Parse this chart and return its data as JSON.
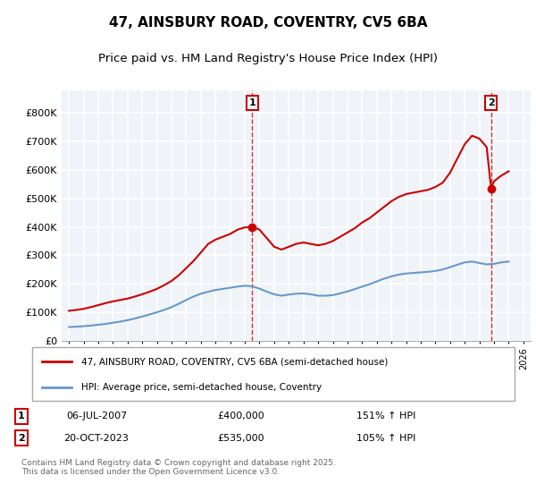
{
  "title1": "47, AINSBURY ROAD, COVENTRY, CV5 6BA",
  "title2": "Price paid vs. HM Land Registry's House Price Index (HPI)",
  "legend_line1": "47, AINSBURY ROAD, COVENTRY, CV5 6BA (semi-detached house)",
  "legend_line2": "HPI: Average price, semi-detached house, Coventry",
  "footnote": "Contains HM Land Registry data © Crown copyright and database right 2025.\nThis data is licensed under the Open Government Licence v3.0.",
  "marker1_date": "06-JUL-2007",
  "marker1_price": "£400,000",
  "marker1_hpi": "151% ↑ HPI",
  "marker1_x": 2007.51,
  "marker1_y": 400000,
  "marker2_date": "20-OCT-2023",
  "marker2_price": "£535,000",
  "marker2_hpi": "105% ↑ HPI",
  "marker2_x": 2023.8,
  "marker2_y": 535000,
  "red_color": "#cc0000",
  "blue_color": "#6699cc",
  "dashed_color": "#cc0000",
  "background_color": "#f0f4f8",
  "plot_bg": "#f0f4f8",
  "grid_color": "#ffffff",
  "ylim": [
    0,
    880000
  ],
  "xlim": [
    1994.5,
    2026.5
  ],
  "red_x": [
    1995.0,
    1995.5,
    1996.0,
    1996.5,
    1997.0,
    1997.5,
    1998.0,
    1998.5,
    1999.0,
    1999.5,
    2000.0,
    2000.5,
    2001.0,
    2001.5,
    2002.0,
    2002.5,
    2003.0,
    2003.5,
    2004.0,
    2004.5,
    2005.0,
    2005.5,
    2006.0,
    2006.5,
    2007.0,
    2007.51,
    2008.0,
    2008.5,
    2009.0,
    2009.5,
    2010.0,
    2010.5,
    2011.0,
    2011.5,
    2012.0,
    2012.5,
    2013.0,
    2013.5,
    2014.0,
    2014.5,
    2015.0,
    2015.5,
    2016.0,
    2016.5,
    2017.0,
    2017.5,
    2018.0,
    2018.5,
    2019.0,
    2019.5,
    2020.0,
    2020.5,
    2021.0,
    2021.5,
    2022.0,
    2022.5,
    2023.0,
    2023.5,
    2023.8,
    2024.0,
    2024.5,
    2025.0
  ],
  "red_y": [
    105000,
    108000,
    112000,
    118000,
    125000,
    132000,
    138000,
    143000,
    148000,
    155000,
    163000,
    172000,
    182000,
    195000,
    210000,
    230000,
    255000,
    280000,
    310000,
    340000,
    355000,
    365000,
    375000,
    390000,
    398000,
    400000,
    390000,
    360000,
    330000,
    320000,
    330000,
    340000,
    345000,
    340000,
    335000,
    340000,
    350000,
    365000,
    380000,
    395000,
    415000,
    430000,
    450000,
    470000,
    490000,
    505000,
    515000,
    520000,
    525000,
    530000,
    540000,
    555000,
    590000,
    640000,
    690000,
    720000,
    710000,
    680000,
    535000,
    560000,
    580000,
    595000
  ],
  "blue_x": [
    1995.0,
    1995.5,
    1996.0,
    1996.5,
    1997.0,
    1997.5,
    1998.0,
    1998.5,
    1999.0,
    1999.5,
    2000.0,
    2000.5,
    2001.0,
    2001.5,
    2002.0,
    2002.5,
    2003.0,
    2003.5,
    2004.0,
    2004.5,
    2005.0,
    2005.5,
    2006.0,
    2006.5,
    2007.0,
    2007.5,
    2008.0,
    2008.5,
    2009.0,
    2009.5,
    2010.0,
    2010.5,
    2011.0,
    2011.5,
    2012.0,
    2012.5,
    2013.0,
    2013.5,
    2014.0,
    2014.5,
    2015.0,
    2015.5,
    2016.0,
    2016.5,
    2017.0,
    2017.5,
    2018.0,
    2018.5,
    2019.0,
    2019.5,
    2020.0,
    2020.5,
    2021.0,
    2021.5,
    2022.0,
    2022.5,
    2023.0,
    2023.5,
    2024.0,
    2024.5,
    2025.0
  ],
  "blue_y": [
    48000,
    49000,
    51000,
    53000,
    56000,
    59000,
    63000,
    67000,
    72000,
    78000,
    85000,
    92000,
    100000,
    108000,
    118000,
    130000,
    143000,
    155000,
    165000,
    172000,
    178000,
    182000,
    186000,
    190000,
    193000,
    191000,
    183000,
    172000,
    163000,
    158000,
    162000,
    165000,
    166000,
    163000,
    158000,
    158000,
    160000,
    166000,
    173000,
    181000,
    190000,
    198000,
    208000,
    218000,
    226000,
    232000,
    236000,
    238000,
    240000,
    242000,
    245000,
    250000,
    258000,
    267000,
    275000,
    278000,
    273000,
    268000,
    270000,
    275000,
    278000
  ]
}
